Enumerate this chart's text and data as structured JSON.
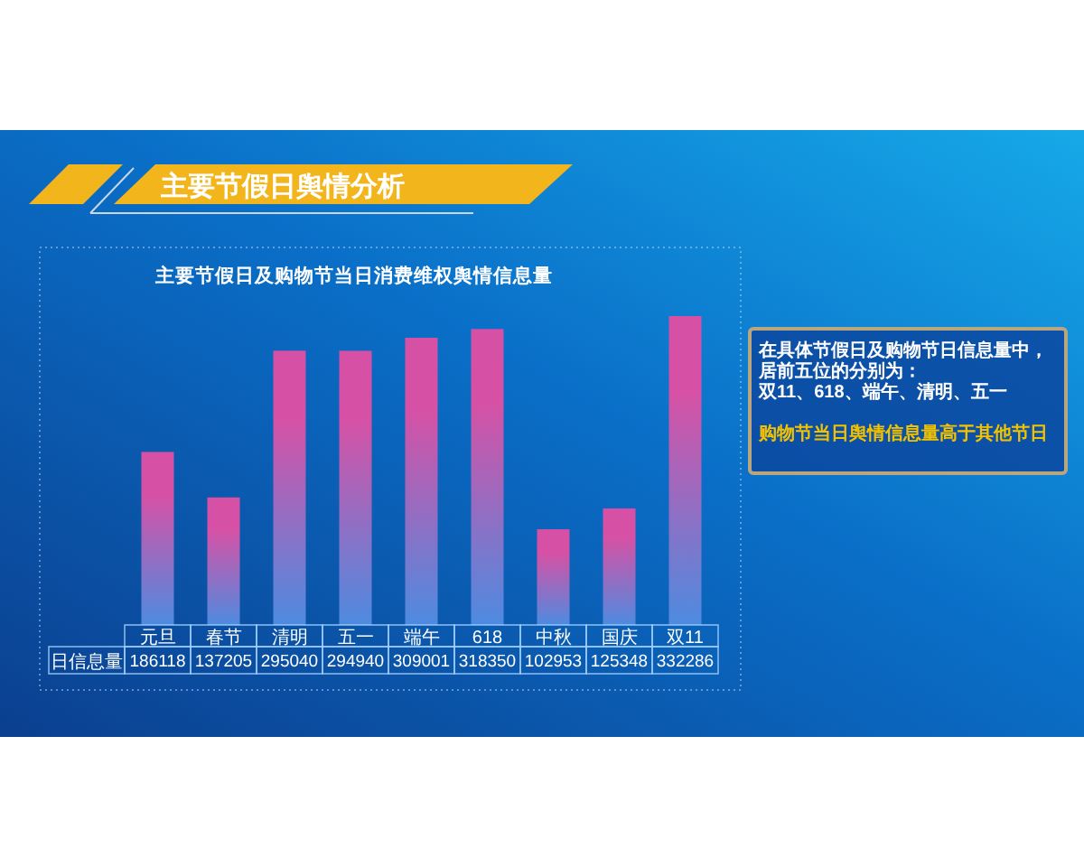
{
  "chart_data": {
    "type": "bar",
    "title": "主要节假日舆情分析",
    "subtitle": "主要节假日及购物节当日消费维权舆情信息量",
    "categories": [
      "元旦",
      "春节",
      "清明",
      "五一",
      "端午",
      "618",
      "中秋",
      "国庆",
      "双11"
    ],
    "series": [
      {
        "name": "日信息量",
        "color": "#d651a5",
        "values": [
          186118,
          137205,
          295040,
          294940,
          309001,
          318350,
          102953,
          125348,
          332286
        ]
      }
    ],
    "data_labels": true,
    "annotations": [
      "在具体节假日及购物节日信息量中，",
      "居前五位的分别为：",
      "双11、618、端午、清明、五一",
      "购物节当日舆情信息量高于其他节日"
    ]
  }
}
